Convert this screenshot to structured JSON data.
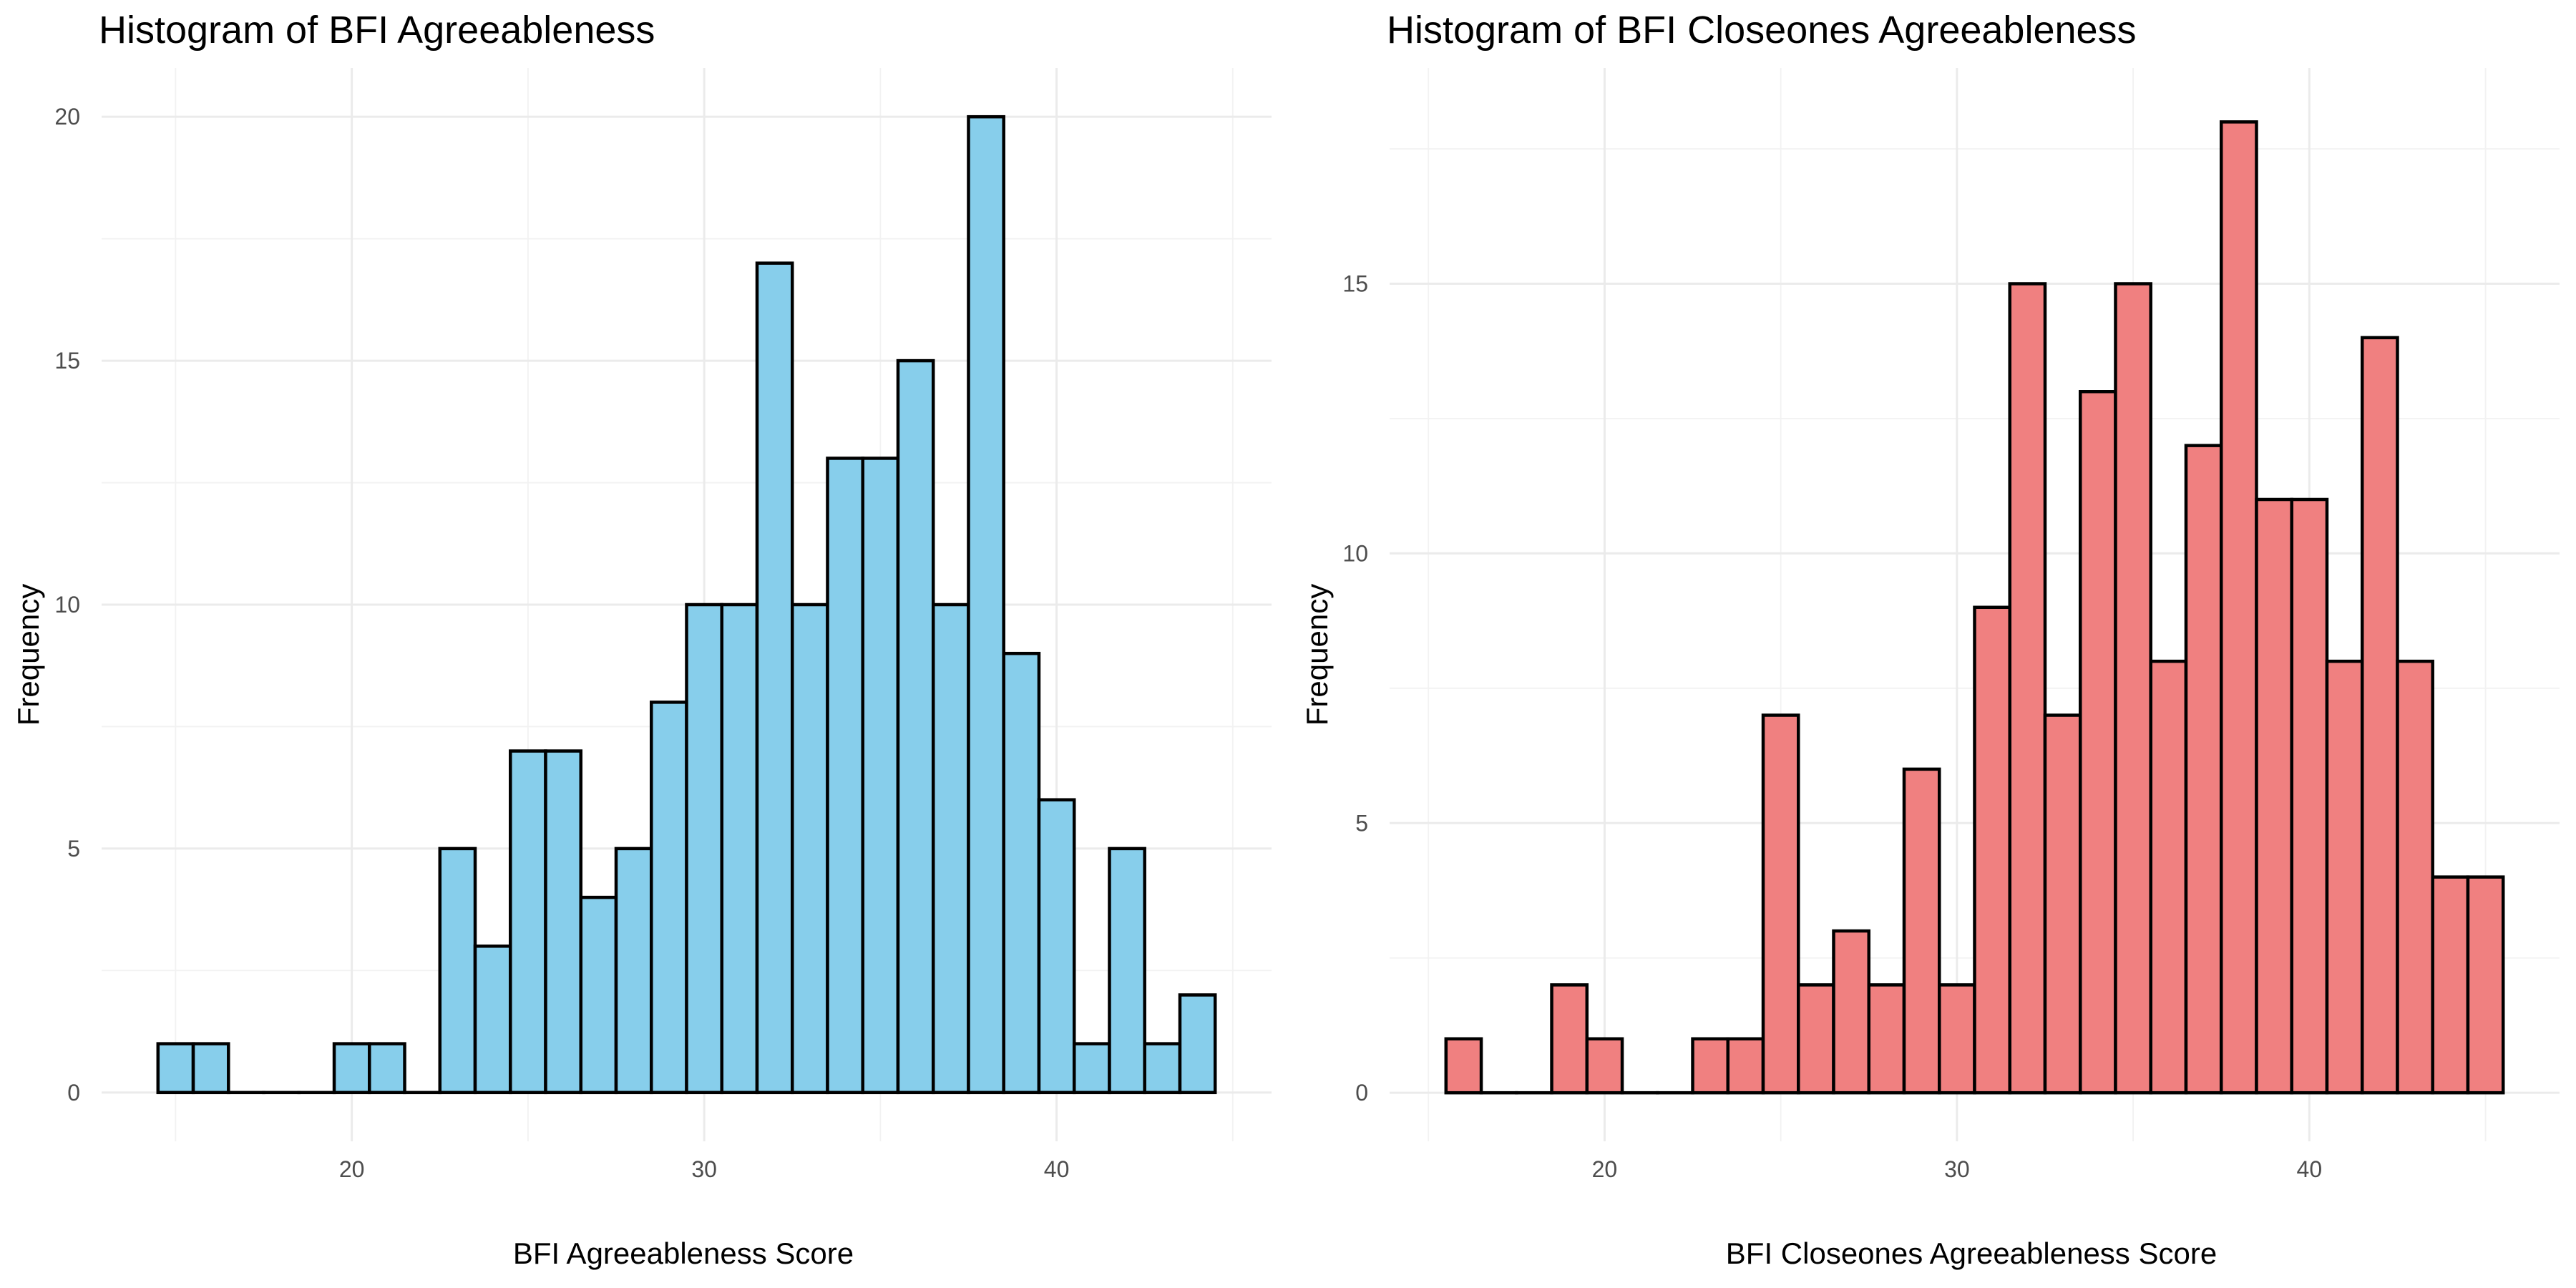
{
  "chart_data": [
    {
      "type": "bar",
      "title": "Histogram of BFI Agreeableness",
      "xlabel": "BFI Agreeableness Score",
      "ylabel": "Frequency",
      "bar_color": "#87CEEB",
      "outline_color": "#000000",
      "bin_width": 1,
      "bin_centers": [
        15,
        16,
        17,
        18,
        19,
        20,
        21,
        22,
        23,
        24,
        25,
        26,
        27,
        28,
        29,
        30,
        31,
        32,
        33,
        34,
        35,
        36,
        37,
        38,
        39,
        40,
        41,
        42,
        43,
        44
      ],
      "values": [
        1,
        1,
        0,
        0,
        0,
        1,
        1,
        0,
        5,
        3,
        7,
        7,
        4,
        5,
        8,
        10,
        10,
        17,
        10,
        13,
        13,
        15,
        10,
        20,
        9,
        6,
        1,
        5,
        1,
        2
      ],
      "xlim": [
        12.9,
        46.1
      ],
      "ylim": [
        -1,
        21
      ],
      "x_ticks": [
        20,
        30,
        40
      ],
      "y_ticks": [
        0,
        5,
        10,
        15,
        20
      ],
      "x_ticks_minor": [
        15,
        25,
        35,
        45
      ],
      "y_ticks_minor": [
        2.5,
        7.5,
        12.5,
        17.5
      ],
      "grid": true
    },
    {
      "type": "bar",
      "title": "Histogram of BFI Closeones Agreeableness",
      "xlabel": "BFI Closeones Agreeableness Score",
      "ylabel": "Frequency",
      "bar_color": "#F08080",
      "outline_color": "#000000",
      "bin_width": 1,
      "bin_centers": [
        16,
        17,
        18,
        19,
        20,
        21,
        22,
        23,
        24,
        25,
        26,
        27,
        28,
        29,
        30,
        31,
        32,
        33,
        34,
        35,
        36,
        37,
        38,
        39,
        40,
        41,
        42,
        43,
        44,
        45
      ],
      "values": [
        1,
        0,
        0,
        2,
        1,
        0,
        0,
        1,
        1,
        7,
        2,
        3,
        2,
        6,
        2,
        9,
        15,
        7,
        13,
        15,
        8,
        12,
        18,
        11,
        11,
        8,
        14,
        8,
        4,
        4
      ],
      "xlim": [
        13.9,
        47.1
      ],
      "ylim": [
        -0.9,
        19
      ],
      "x_ticks": [
        20,
        30,
        40
      ],
      "y_ticks": [
        0,
        5,
        10,
        15
      ],
      "x_ticks_minor": [
        15,
        25,
        35,
        45
      ],
      "y_ticks_minor": [
        2.5,
        7.5,
        12.5,
        17.5
      ],
      "grid": true
    }
  ]
}
